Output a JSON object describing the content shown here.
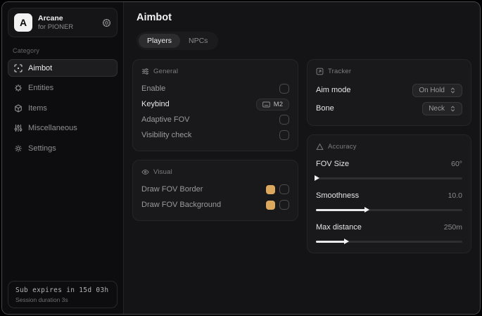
{
  "sidebar": {
    "logo_letter": "A",
    "app_name": "Arcane",
    "app_subtitle": "for PIONER",
    "category_label": "Category",
    "items": [
      {
        "label": "Aimbot"
      },
      {
        "label": "Entities"
      },
      {
        "label": "Items"
      },
      {
        "label": "Miscellaneous"
      },
      {
        "label": "Settings"
      }
    ],
    "footer": {
      "line1": "Sub expires in 15d 03h",
      "line2": "Session duration 3s"
    }
  },
  "main": {
    "title": "Aimbot",
    "tabs": [
      {
        "label": "Players"
      },
      {
        "label": "NPCs"
      }
    ],
    "sections": {
      "general": {
        "title": "General",
        "rows": [
          {
            "label": "Enable",
            "control": "checkbox",
            "checked": false
          },
          {
            "label": "Keybind",
            "control": "keybind",
            "value": "M2"
          },
          {
            "label": "Adaptive FOV",
            "control": "checkbox",
            "checked": false
          },
          {
            "label": "Visibility check",
            "control": "checkbox",
            "checked": false
          }
        ]
      },
      "visual": {
        "title": "Visual",
        "rows": [
          {
            "label": "Draw FOV Border",
            "control": "color-checkbox",
            "color": "#dca85e",
            "checked": false
          },
          {
            "label": "Draw FOV Background",
            "control": "color-checkbox",
            "color": "#dca85e",
            "checked": false
          }
        ]
      },
      "tracker": {
        "title": "Tracker",
        "rows": [
          {
            "label": "Aim mode",
            "control": "dropdown",
            "value": "On Hold"
          },
          {
            "label": "Bone",
            "control": "dropdown",
            "value": "Neck"
          }
        ]
      },
      "accuracy": {
        "title": "Accuracy",
        "sliders": [
          {
            "label": "FOV Size",
            "value": "60°",
            "percent": 1
          },
          {
            "label": "Smoothness",
            "value": "10.0",
            "percent": 35
          },
          {
            "label": "Max distance",
            "value": "250m",
            "percent": 21
          }
        ]
      }
    }
  },
  "colors": {
    "accent": "#dca85e",
    "slider_fill": "#e9e9e9"
  }
}
